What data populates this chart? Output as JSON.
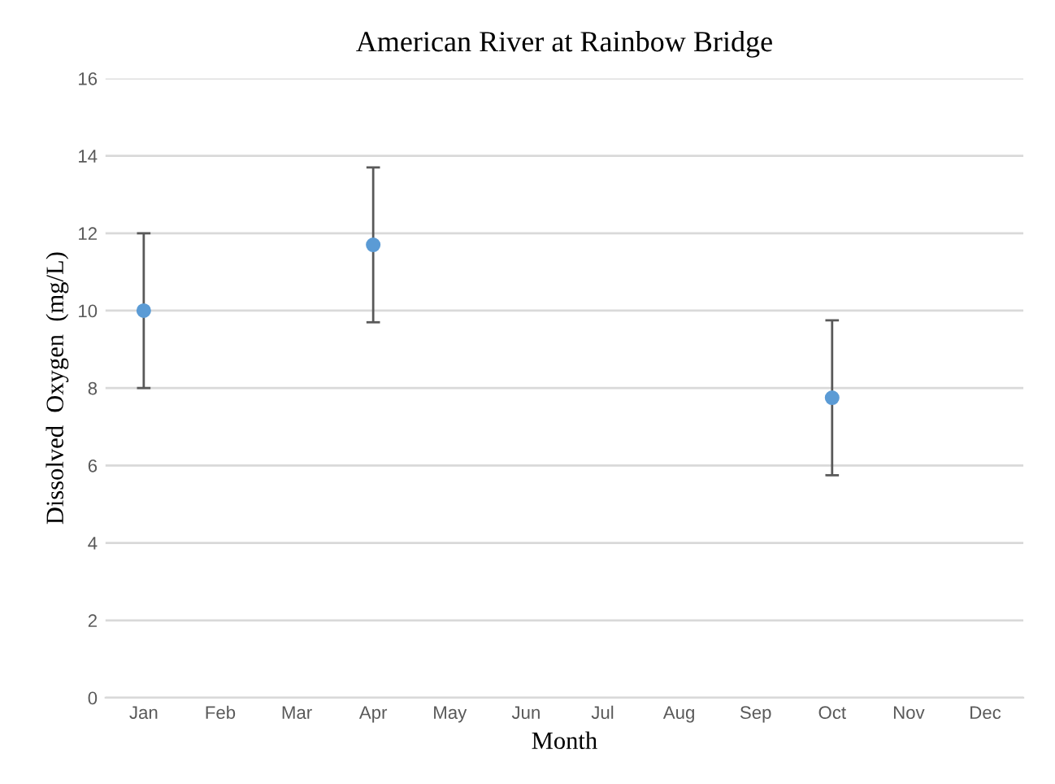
{
  "chart_data": {
    "type": "scatter",
    "title": "American River at Rainbow Bridge",
    "xlabel": "Month",
    "ylabel": "Dissolved  Oxygen  (mg/L)",
    "categories": [
      "Jan",
      "Feb",
      "Mar",
      "Apr",
      "May",
      "Jun",
      "Jul",
      "Aug",
      "Sep",
      "Oct",
      "Nov",
      "Dec"
    ],
    "series": [
      {
        "color": "#5b9bd5",
        "values": [
          10,
          null,
          null,
          11.7,
          null,
          null,
          null,
          null,
          null,
          7.75,
          null,
          null
        ],
        "errors": [
          2,
          null,
          null,
          2,
          null,
          null,
          null,
          null,
          null,
          2,
          null,
          null
        ]
      }
    ],
    "ylim": [
      0,
      16
    ],
    "yticks": [
      0,
      2,
      4,
      6,
      8,
      10,
      12,
      14,
      16
    ],
    "grid": "y",
    "marker": "circle",
    "legend": false
  }
}
